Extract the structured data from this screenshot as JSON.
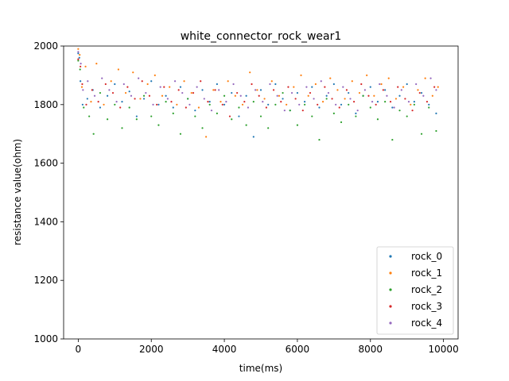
{
  "chart_data": {
    "type": "scatter",
    "title": "white_connector_rock_wear1",
    "xlabel": "time(ms)",
    "ylabel": "resistance value(ohm)",
    "xlim": [
      -400,
      10400
    ],
    "ylim": [
      1000,
      2000
    ],
    "xticks": [
      0,
      2000,
      4000,
      6000,
      8000,
      10000
    ],
    "yticks": [
      1000,
      1200,
      1400,
      1600,
      1800,
      2000
    ],
    "xtick_labels": [
      "0",
      "2000",
      "4000",
      "6000",
      "8000",
      "10000"
    ],
    "ytick_labels": [
      "1000",
      "1200",
      "1400",
      "1600",
      "1800",
      "2000"
    ],
    "legend": {
      "placement": "lower-right"
    },
    "grid": false,
    "series": [
      {
        "name": "rock_0",
        "color": "#1f77b4",
        "points": [
          [
            0,
            1975
          ],
          [
            30,
            1960
          ],
          [
            60,
            1880
          ],
          [
            120,
            1800
          ],
          [
            250,
            1820
          ],
          [
            400,
            1850
          ],
          [
            600,
            1790
          ],
          [
            800,
            1830
          ],
          [
            1000,
            1870
          ],
          [
            1200,
            1810
          ],
          [
            1400,
            1845
          ],
          [
            1600,
            1760
          ],
          [
            1800,
            1820
          ],
          [
            2000,
            1880
          ],
          [
            2200,
            1800
          ],
          [
            2400,
            1830
          ],
          [
            2600,
            1790
          ],
          [
            2800,
            1860
          ],
          [
            3000,
            1820
          ],
          [
            3200,
            1780
          ],
          [
            3400,
            1850
          ],
          [
            3600,
            1810
          ],
          [
            3800,
            1870
          ],
          [
            4000,
            1800
          ],
          [
            4200,
            1840
          ],
          [
            4400,
            1760
          ],
          [
            4600,
            1830
          ],
          [
            4800,
            1690
          ],
          [
            5000,
            1850
          ],
          [
            5200,
            1800
          ],
          [
            5400,
            1870
          ],
          [
            5600,
            1820
          ],
          [
            5800,
            1780
          ],
          [
            6000,
            1840
          ],
          [
            6200,
            1810
          ],
          [
            6400,
            1860
          ],
          [
            6600,
            1790
          ],
          [
            6800,
            1830
          ],
          [
            7000,
            1870
          ],
          [
            7200,
            1800
          ],
          [
            7400,
            1840
          ],
          [
            7600,
            1770
          ],
          [
            7800,
            1830
          ],
          [
            8000,
            1860
          ],
          [
            8200,
            1810
          ],
          [
            8400,
            1850
          ],
          [
            8600,
            1790
          ],
          [
            8800,
            1830
          ],
          [
            9000,
            1870
          ],
          [
            9200,
            1810
          ],
          [
            9400,
            1840
          ],
          [
            9600,
            1800
          ],
          [
            9800,
            1770
          ]
        ]
      },
      {
        "name": "rock_1",
        "color": "#ff7f0e",
        "points": [
          [
            0,
            1990
          ],
          [
            40,
            1970
          ],
          [
            100,
            1860
          ],
          [
            200,
            1930
          ],
          [
            350,
            1810
          ],
          [
            500,
            1940
          ],
          [
            700,
            1800
          ],
          [
            900,
            1880
          ],
          [
            1100,
            1920
          ],
          [
            1300,
            1840
          ],
          [
            1500,
            1910
          ],
          [
            1700,
            1820
          ],
          [
            1900,
            1870
          ],
          [
            2100,
            1900
          ],
          [
            2300,
            1830
          ],
          [
            2500,
            1860
          ],
          [
            2700,
            1800
          ],
          [
            2900,
            1880
          ],
          [
            3100,
            1840
          ],
          [
            3300,
            1790
          ],
          [
            3500,
            1690
          ],
          [
            3700,
            1850
          ],
          [
            3900,
            1810
          ],
          [
            4100,
            1880
          ],
          [
            4300,
            1830
          ],
          [
            4500,
            1800
          ],
          [
            4700,
            1910
          ],
          [
            4900,
            1850
          ],
          [
            5100,
            1820
          ],
          [
            5300,
            1880
          ],
          [
            5500,
            1830
          ],
          [
            5700,
            1800
          ],
          [
            5900,
            1860
          ],
          [
            6100,
            1900
          ],
          [
            6300,
            1830
          ],
          [
            6500,
            1870
          ],
          [
            6700,
            1810
          ],
          [
            6900,
            1890
          ],
          [
            7100,
            1850
          ],
          [
            7300,
            1820
          ],
          [
            7500,
            1880
          ],
          [
            7700,
            1840
          ],
          [
            7900,
            1900
          ],
          [
            8100,
            1830
          ],
          [
            8300,
            1870
          ],
          [
            8500,
            1890
          ],
          [
            8700,
            1820
          ],
          [
            8900,
            1860
          ],
          [
            9100,
            1800
          ],
          [
            9300,
            1850
          ],
          [
            9500,
            1890
          ],
          [
            9700,
            1830
          ],
          [
            9850,
            1860
          ]
        ]
      },
      {
        "name": "rock_2",
        "color": "#2ca02c",
        "points": [
          [
            0,
            1950
          ],
          [
            50,
            1920
          ],
          [
            150,
            1790
          ],
          [
            300,
            1760
          ],
          [
            420,
            1700
          ],
          [
            600,
            1840
          ],
          [
            800,
            1750
          ],
          [
            1000,
            1800
          ],
          [
            1200,
            1720
          ],
          [
            1400,
            1790
          ],
          [
            1600,
            1750
          ],
          [
            1800,
            1830
          ],
          [
            2000,
            1760
          ],
          [
            2200,
            1730
          ],
          [
            2400,
            1810
          ],
          [
            2600,
            1770
          ],
          [
            2800,
            1700
          ],
          [
            3000,
            1820
          ],
          [
            3200,
            1760
          ],
          [
            3400,
            1720
          ],
          [
            3600,
            1800
          ],
          [
            3800,
            1770
          ],
          [
            4000,
            1830
          ],
          [
            4200,
            1750
          ],
          [
            4400,
            1790
          ],
          [
            4600,
            1730
          ],
          [
            4800,
            1810
          ],
          [
            5000,
            1760
          ],
          [
            5200,
            1720
          ],
          [
            5400,
            1800
          ],
          [
            5600,
            1840
          ],
          [
            5800,
            1780
          ],
          [
            6000,
            1730
          ],
          [
            6200,
            1800
          ],
          [
            6400,
            1760
          ],
          [
            6600,
            1680
          ],
          [
            6800,
            1820
          ],
          [
            7000,
            1770
          ],
          [
            7200,
            1740
          ],
          [
            7400,
            1800
          ],
          [
            7600,
            1760
          ],
          [
            7800,
            1830
          ],
          [
            8000,
            1790
          ],
          [
            8200,
            1750
          ],
          [
            8400,
            1810
          ],
          [
            8600,
            1680
          ],
          [
            8800,
            1780
          ],
          [
            9000,
            1760
          ],
          [
            9200,
            1800
          ],
          [
            9400,
            1700
          ],
          [
            9600,
            1790
          ],
          [
            9800,
            1710
          ]
        ]
      },
      {
        "name": "rock_3",
        "color": "#d62728",
        "points": [
          [
            0,
            1955
          ],
          [
            60,
            1930
          ],
          [
            110,
            1870
          ],
          [
            220,
            1800
          ],
          [
            380,
            1850
          ],
          [
            550,
            1810
          ],
          [
            750,
            1870
          ],
          [
            950,
            1840
          ],
          [
            1150,
            1790
          ],
          [
            1350,
            1860
          ],
          [
            1550,
            1820
          ],
          [
            1750,
            1880
          ],
          [
            1950,
            1830
          ],
          [
            2150,
            1800
          ],
          [
            2350,
            1860
          ],
          [
            2550,
            1810
          ],
          [
            2750,
            1850
          ],
          [
            2950,
            1790
          ],
          [
            3150,
            1840
          ],
          [
            3350,
            1880
          ],
          [
            3550,
            1810
          ],
          [
            3750,
            1850
          ],
          [
            3950,
            1800
          ],
          [
            4150,
            1760
          ],
          [
            4350,
            1840
          ],
          [
            4550,
            1810
          ],
          [
            4750,
            1870
          ],
          [
            4950,
            1830
          ],
          [
            5150,
            1790
          ],
          [
            5350,
            1850
          ],
          [
            5550,
            1810
          ],
          [
            5750,
            1860
          ],
          [
            5950,
            1820
          ],
          [
            6150,
            1780
          ],
          [
            6350,
            1840
          ],
          [
            6550,
            1800
          ],
          [
            6750,
            1860
          ],
          [
            6950,
            1820
          ],
          [
            7150,
            1790
          ],
          [
            7350,
            1850
          ],
          [
            7550,
            1810
          ],
          [
            7750,
            1870
          ],
          [
            7950,
            1830
          ],
          [
            8150,
            1800
          ],
          [
            8350,
            1850
          ],
          [
            8550,
            1810
          ],
          [
            8750,
            1860
          ],
          [
            8950,
            1820
          ],
          [
            9150,
            1780
          ],
          [
            9350,
            1840
          ],
          [
            9550,
            1810
          ],
          [
            9750,
            1860
          ]
        ]
      },
      {
        "name": "rock_4",
        "color": "#9467bd",
        "points": [
          [
            0,
            1980
          ],
          [
            70,
            1940
          ],
          [
            130,
            1850
          ],
          [
            260,
            1880
          ],
          [
            450,
            1830
          ],
          [
            650,
            1890
          ],
          [
            850,
            1850
          ],
          [
            1050,
            1810
          ],
          [
            1250,
            1870
          ],
          [
            1450,
            1830
          ],
          [
            1650,
            1890
          ],
          [
            1850,
            1840
          ],
          [
            2050,
            1800
          ],
          [
            2250,
            1860
          ],
          [
            2450,
            1820
          ],
          [
            2650,
            1880
          ],
          [
            2850,
            1840
          ],
          [
            3050,
            1800
          ],
          [
            3250,
            1860
          ],
          [
            3450,
            1820
          ],
          [
            3650,
            1780
          ],
          [
            3850,
            1850
          ],
          [
            4050,
            1810
          ],
          [
            4250,
            1870
          ],
          [
            4450,
            1830
          ],
          [
            4650,
            1790
          ],
          [
            4850,
            1850
          ],
          [
            5050,
            1810
          ],
          [
            5250,
            1870
          ],
          [
            5450,
            1830
          ],
          [
            5650,
            1780
          ],
          [
            5850,
            1840
          ],
          [
            6050,
            1800
          ],
          [
            6250,
            1860
          ],
          [
            6450,
            1820
          ],
          [
            6650,
            1880
          ],
          [
            6850,
            1840
          ],
          [
            7050,
            1800
          ],
          [
            7250,
            1860
          ],
          [
            7450,
            1820
          ],
          [
            7650,
            1780
          ],
          [
            7850,
            1850
          ],
          [
            8050,
            1810
          ],
          [
            8250,
            1870
          ],
          [
            8450,
            1830
          ],
          [
            8650,
            1790
          ],
          [
            8850,
            1850
          ],
          [
            9050,
            1810
          ],
          [
            9250,
            1870
          ],
          [
            9450,
            1830
          ],
          [
            9650,
            1890
          ],
          [
            9800,
            1850
          ]
        ]
      }
    ]
  }
}
